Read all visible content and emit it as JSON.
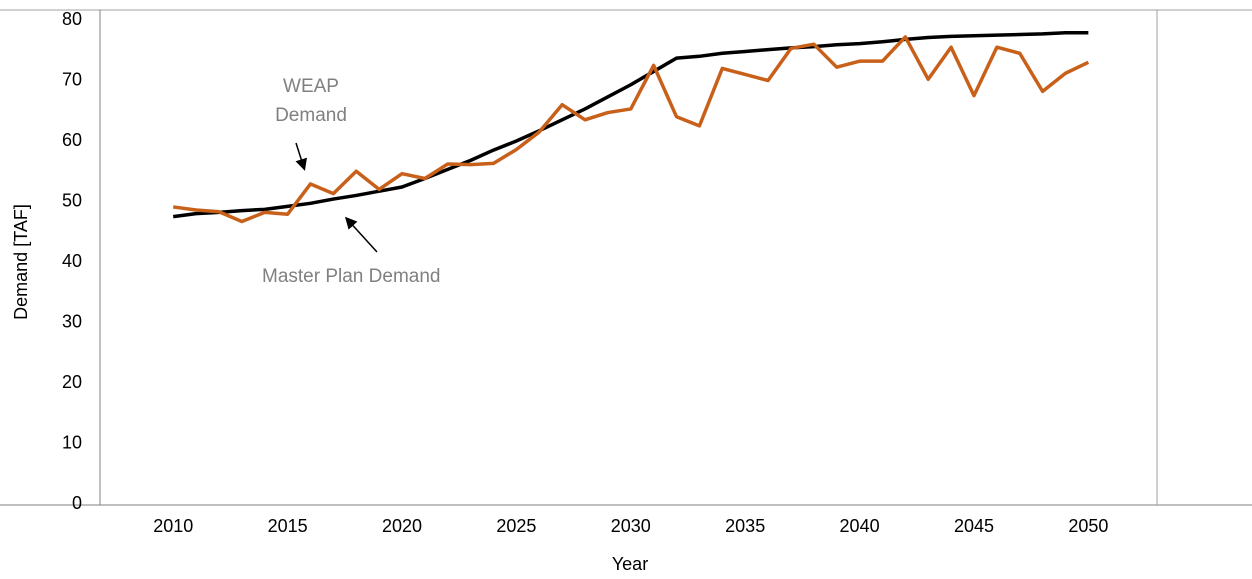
{
  "chart_data": {
    "type": "line",
    "xlabel": "Year",
    "ylabel": "Demand [TAF]",
    "annotations": [
      [
        "WEAP",
        "Demand"
      ],
      [
        "Master Plan Demand"
      ]
    ],
    "x": [
      2010,
      2011,
      2012,
      2013,
      2014,
      2015,
      2016,
      2017,
      2018,
      2019,
      2020,
      2021,
      2022,
      2023,
      2024,
      2025,
      2026,
      2027,
      2028,
      2029,
      2030,
      2031,
      2032,
      2033,
      2034,
      2035,
      2036,
      2037,
      2038,
      2039,
      2040,
      2041,
      2042,
      2043,
      2044,
      2045,
      2046,
      2047,
      2048,
      2049,
      2050
    ],
    "series": [
      {
        "color": "#000000",
        "values": [
          47.5,
          48,
          48.2,
          48.5,
          48.7,
          49.2,
          49.7,
          50.4,
          51,
          51.7,
          52.4,
          53.8,
          55.3,
          56.8,
          58.5,
          60,
          61.7,
          63.5,
          65.3,
          67.3,
          69.3,
          71.5,
          73.7,
          74,
          74.5,
          74.8,
          75.1,
          75.4,
          75.6,
          75.9,
          76.1,
          76.4,
          76.8,
          77.1,
          77.3,
          77.4,
          77.5,
          77.6,
          77.7,
          77.9,
          77.9
        ]
      },
      {
        "color": "#c8601a",
        "values": [
          49.1,
          48.6,
          48.3,
          46.7,
          48.2,
          47.9,
          52.9,
          51.3,
          55,
          52,
          54.6,
          53.8,
          56.2,
          56.1,
          56.3,
          58.6,
          61.5,
          66,
          63.5,
          64.7,
          65.3,
          72.5,
          64,
          62.5,
          72,
          71,
          70,
          75.3,
          76,
          72.2,
          73.2,
          73.2,
          77.2,
          70.2,
          75.5,
          67.5,
          75.5,
          74.5,
          68.2,
          71.2,
          73
        ]
      }
    ],
    "xlim": [
      2006.8,
      2053
    ],
    "xticks": [
      2010,
      2015,
      2020,
      2025,
      2030,
      2035,
      2040,
      2045,
      2050
    ],
    "ylim": [
      0,
      80
    ],
    "yticks": [
      0,
      10,
      20,
      30,
      40,
      50,
      60,
      70,
      80
    ]
  }
}
